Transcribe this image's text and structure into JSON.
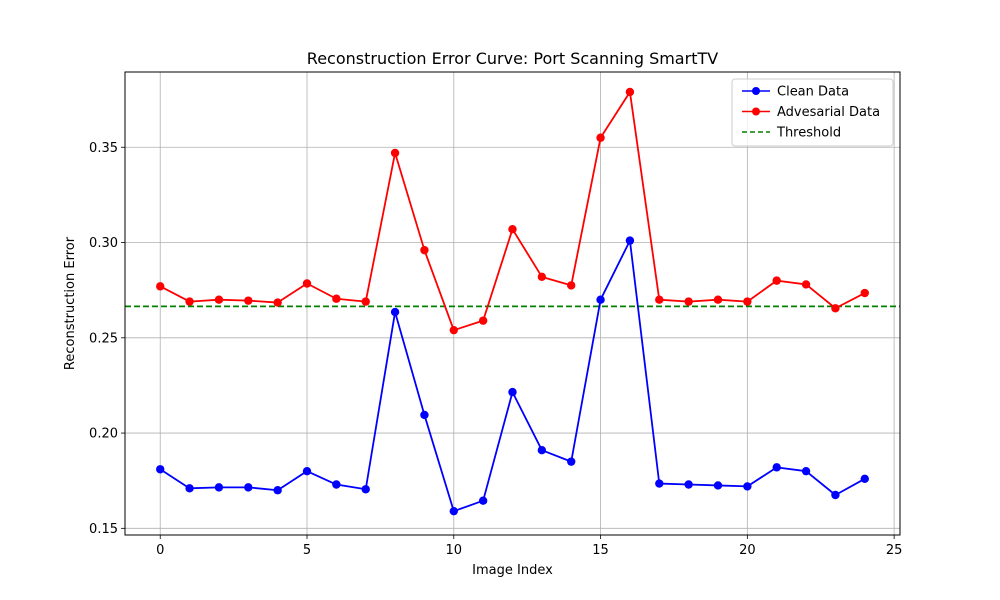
{
  "chart_data": {
    "type": "line",
    "title": "Reconstruction Error Curve: Port Scanning SmartTV",
    "xlabel": "Image Index",
    "ylabel": "Reconstruction Error",
    "xlim": [
      -1.2,
      25.2
    ],
    "ylim": [
      0.1465,
      0.3895
    ],
    "xticks": [
      0,
      5,
      10,
      15,
      20,
      25
    ],
    "yticks": [
      0.15,
      0.2,
      0.25,
      0.3,
      0.35
    ],
    "ytick_labels": [
      "0.15",
      "0.20",
      "0.25",
      "0.30",
      "0.35"
    ],
    "grid": true,
    "legend_position": "top-right",
    "x": [
      0,
      1,
      2,
      3,
      4,
      5,
      6,
      7,
      8,
      9,
      10,
      11,
      12,
      13,
      14,
      15,
      16,
      17,
      18,
      19,
      20,
      21,
      22,
      23,
      24
    ],
    "series": [
      {
        "name": "Clean Data",
        "color": "#0000ff",
        "marker": "circle",
        "values": [
          0.181,
          0.171,
          0.1715,
          0.1715,
          0.17,
          0.18,
          0.173,
          0.1705,
          0.2635,
          0.2095,
          0.159,
          0.1645,
          0.2215,
          0.191,
          0.185,
          0.27,
          0.301,
          0.1735,
          0.173,
          0.1725,
          0.172,
          0.182,
          0.18,
          0.1675,
          0.176
        ]
      },
      {
        "name": "Advesarial Data",
        "color": "#ff0000",
        "marker": "circle",
        "values": [
          0.277,
          0.269,
          0.27,
          0.2695,
          0.2685,
          0.2785,
          0.2705,
          0.269,
          0.347,
          0.296,
          0.254,
          0.259,
          0.307,
          0.282,
          0.2775,
          0.355,
          0.379,
          0.27,
          0.269,
          0.27,
          0.269,
          0.28,
          0.278,
          0.2655,
          0.2735
        ]
      }
    ],
    "threshold": {
      "name": "Threshold",
      "value": 0.2665,
      "color": "#008000",
      "style": "dashed"
    }
  }
}
